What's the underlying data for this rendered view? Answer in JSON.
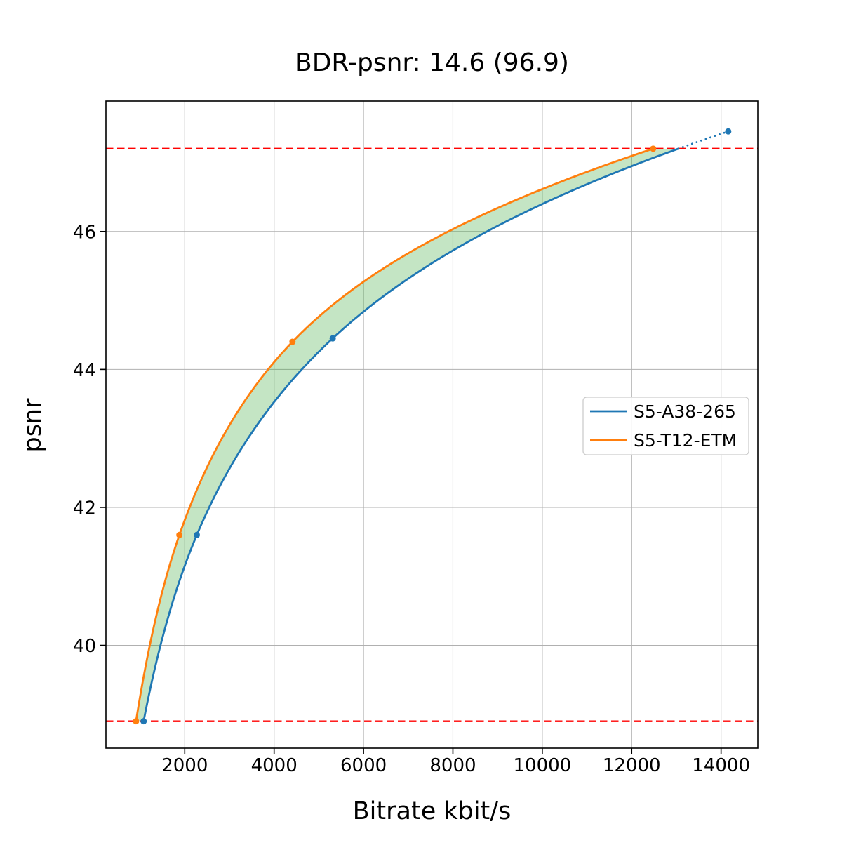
{
  "chart_data": {
    "type": "line",
    "title": "BDR-psnr: 14.6 (96.9)",
    "xlabel": "Bitrate kbit/s",
    "ylabel": "psnr",
    "xlim": [
      237,
      14822
    ],
    "ylim": [
      38.51,
      47.89
    ],
    "x_ticks": [
      2000,
      4000,
      6000,
      8000,
      10000,
      12000,
      14000
    ],
    "y_ticks": [
      40,
      42,
      44,
      46
    ],
    "grid": true,
    "grid_color": "#b0b0b0",
    "background": "#ffffff",
    "interpolation": "pchip-log-x",
    "series": [
      {
        "name": "S5-A38-265",
        "color": "#1f77b4",
        "marker": "circle",
        "points": [
          [
            1080,
            38.9
          ],
          [
            2270,
            41.6
          ],
          [
            5310,
            44.45
          ],
          [
            14160,
            47.45
          ]
        ],
        "out_of_overlap_style": "dotted"
      },
      {
        "name": "S5-T12-ETM",
        "color": "#ff7f0e",
        "marker": "circle",
        "points": [
          [
            910,
            38.9
          ],
          [
            1880,
            41.6
          ],
          [
            4410,
            44.4
          ],
          [
            12480,
            47.2
          ]
        ],
        "out_of_overlap_style": "dotted"
      }
    ],
    "hlines": [
      {
        "y": 47.2,
        "color": "#ff0000",
        "style": "dashed"
      },
      {
        "y": 38.9,
        "color": "#ff0000",
        "style": "dashed"
      }
    ],
    "fill_between": {
      "color": "#2ca02c",
      "opacity": 0.28,
      "y_from": 38.9,
      "y_to": 47.2
    },
    "legend": {
      "position": "right-center",
      "entries": [
        "S5-A38-265",
        "S5-T12-ETM"
      ]
    }
  }
}
